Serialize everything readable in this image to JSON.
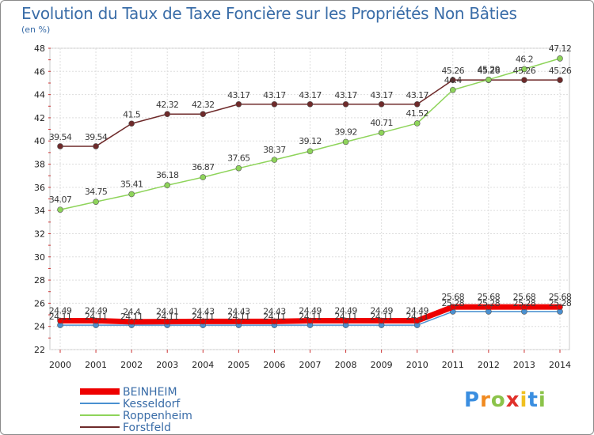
{
  "chart_data": {
    "type": "line",
    "title": "Evolution du Taux de Taxe Foncière sur les Propriétés Non Bâties",
    "subtitle": "(en %)",
    "x": [
      "2000",
      "2001",
      "2002",
      "2003",
      "2004",
      "2005",
      "2006",
      "2007",
      "2008",
      "2009",
      "2010",
      "2011",
      "2012",
      "2013",
      "2014"
    ],
    "ylim": [
      22,
      48
    ],
    "yticks": [
      "22",
      "24",
      "26",
      "28",
      "30",
      "32",
      "34",
      "36",
      "38",
      "40",
      "42",
      "44",
      "46",
      "48"
    ],
    "series": [
      {
        "name": "Forstfeld",
        "color": "#6e2a2a",
        "values": [
          39.54,
          39.54,
          41.5,
          42.32,
          42.32,
          43.17,
          43.17,
          43.17,
          43.17,
          43.17,
          43.17,
          45.26,
          45.26,
          45.26,
          45.26
        ],
        "labels": [
          "39.54",
          "39.54",
          "41.5",
          "42.32",
          "42.32",
          "43.17",
          "43.17",
          "43.17",
          "43.17",
          "43.17",
          "43.17",
          "45.26",
          "45.26",
          "45.26",
          "45.26"
        ]
      },
      {
        "name": "Roppenheim",
        "color": "#8ed45a",
        "values": [
          34.07,
          34.75,
          35.41,
          36.18,
          36.87,
          37.65,
          38.37,
          39.12,
          39.92,
          40.71,
          41.52,
          44.4,
          45.29,
          46.2,
          47.12
        ],
        "labels": [
          "34.07",
          "34.75",
          "35.41",
          "36.18",
          "36.87",
          "37.65",
          "38.37",
          "39.12",
          "39.92",
          "40.71",
          "41.52",
          "44.4",
          "45.29",
          "46.2",
          "47.12"
        ]
      },
      {
        "name": "Kesseldorf",
        "color": "#4a90d0",
        "values": [
          24.11,
          24.11,
          24.11,
          24.11,
          24.11,
          24.11,
          24.11,
          24.11,
          24.11,
          24.11,
          24.11,
          25.28,
          25.28,
          25.28,
          25.28
        ],
        "labels": [
          "24.11",
          "24.11",
          "24.11",
          "24.11",
          "24.11",
          "24.11",
          "24.11",
          "24.11",
          "24.11",
          "24.11",
          "24.11",
          "25.28",
          "25.28",
          "25.28",
          "25.28"
        ]
      },
      {
        "name": "BEINHEIM",
        "color": "#ee0000",
        "values": [
          24.49,
          24.49,
          24.4,
          24.41,
          24.43,
          24.43,
          24.43,
          24.49,
          24.49,
          24.49,
          24.49,
          25.68,
          25.68,
          25.68,
          25.68
        ],
        "labels": [
          "24.49",
          "24.49",
          "24.4",
          "24.41",
          "24.43",
          "24.43",
          "24.43",
          "24.49",
          "24.49",
          "24.49",
          "24.49",
          "25.68",
          "25.68",
          "25.68",
          "25.68"
        ]
      }
    ],
    "legend_order": [
      "BEINHEIM",
      "Kesseldorf",
      "Roppenheim",
      "Forstfeld"
    ]
  },
  "logo": {
    "letters": [
      "P",
      "r",
      "o",
      "x",
      "i",
      "t",
      "i"
    ],
    "colors": [
      "#3a8ee0",
      "#f08a20",
      "#8bc34a",
      "#e0302a",
      "#f0c020",
      "#3a8ee0",
      "#8bc34a"
    ]
  }
}
